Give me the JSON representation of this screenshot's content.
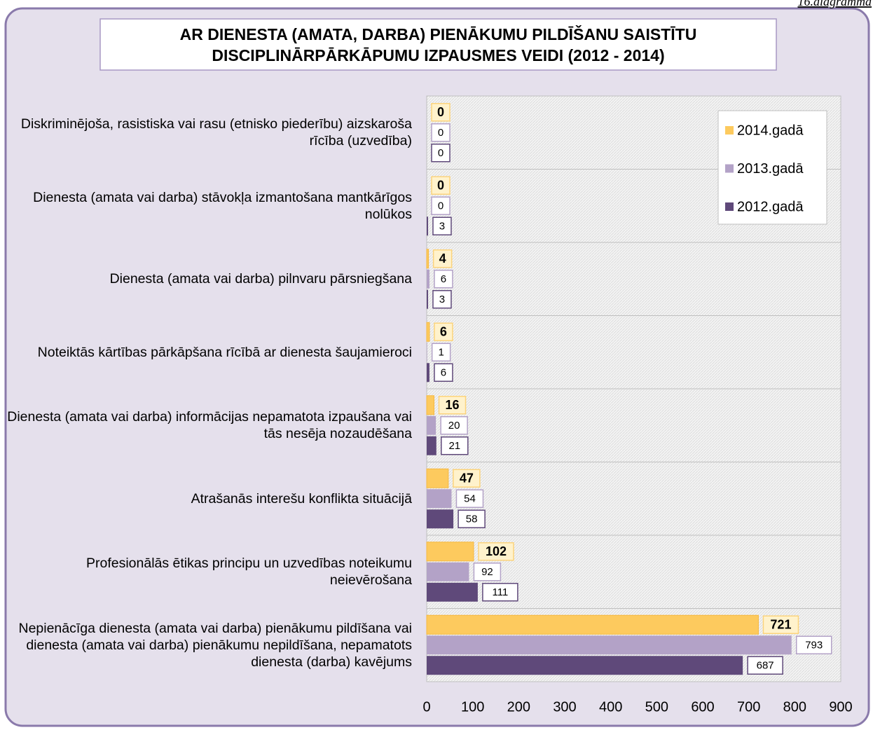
{
  "chart_data": {
    "type": "bar",
    "orientation": "horizontal",
    "figure_label": "16.diagramma",
    "title": "AR DIENESTA (AMATA, DARBA) PIENĀKUMU PILDĪŠANU SAISTĪTU DISCIPLINĀRPĀRKĀPUMU IZPAUSMES VEIDI (2012 - 2014)",
    "categories": [
      "Diskriminējoša, rasistiska vai rasu (etnisko piederību) aizskaroša rīcība (uzvedība)",
      "Dienesta (amata vai darba) stāvokļa izmantošana mantkārīgos nolūkos",
      "Dienesta (amata vai darba) pilnvaru pārsniegšana",
      "Noteiktās kārtības pārkāpšana rīcībā ar dienesta šaujamieroci",
      "Dienesta (amata vai darba) informācijas nepamatota izpaušana vai tās nesēja nozaudēšana",
      "Atrašanās interešu konflikta situācijā",
      "Profesionālās ētikas principu un uzvedības noteikumu neievērošana",
      "Nepienācīga dienesta (amata vai darba) pienākumu pildīšana vai dienesta (amata vai darba) pienākumu nepildīšana, nepamatots dienesta (darba) kavējums"
    ],
    "series": [
      {
        "name": "2014.gadā",
        "color": "#fdca5e",
        "values": [
          0,
          0,
          4,
          6,
          16,
          47,
          102,
          721
        ]
      },
      {
        "name": "2013.gadā",
        "color": "#b3a2c7",
        "values": [
          0,
          0,
          6,
          1,
          20,
          54,
          92,
          793
        ]
      },
      {
        "name": "2012.gadā",
        "color": "#5f497a",
        "values": [
          0,
          3,
          3,
          6,
          21,
          58,
          111,
          687
        ]
      }
    ],
    "xlim": [
      0,
      900
    ],
    "xticks": [
      0,
      100,
      200,
      300,
      400,
      500,
      600,
      700,
      800,
      900
    ],
    "legend": "top-right",
    "grid": false
  }
}
